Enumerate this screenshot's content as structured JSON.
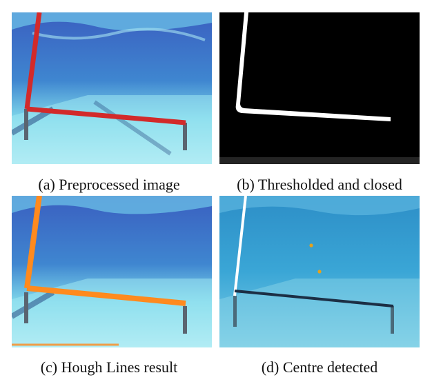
{
  "figure": {
    "panels": [
      {
        "caption": "(a) Preprocessed image"
      },
      {
        "caption": "(b) Thresholded and closed"
      },
      {
        "caption": "(c) Hough Lines result"
      },
      {
        "caption": "(d) Centre detected"
      }
    ]
  },
  "colors": {
    "pool_deep": "#2d4fb0",
    "pool_light": "#8fe6f0",
    "gate_red": "#d22a2a",
    "hough_orange": "#ff8a1e",
    "centre_dot": "#e6a21c"
  }
}
